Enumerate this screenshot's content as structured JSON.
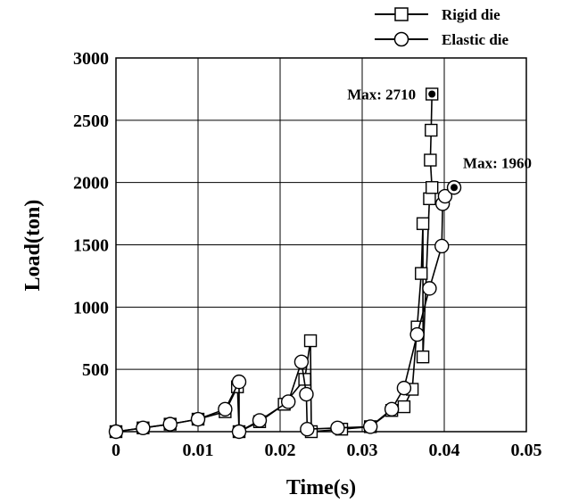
{
  "chart_data": {
    "type": "line",
    "xlabel": "Time(s)",
    "ylabel": "Load(ton)",
    "xlim": [
      0,
      0.05
    ],
    "ylim": [
      0,
      3000
    ],
    "x_ticks": [
      "0",
      "0.01",
      "0.02",
      "0.03",
      "0.04",
      "0.05"
    ],
    "y_ticks": [
      "500",
      "1000",
      "1500",
      "2000",
      "2500",
      "3000"
    ],
    "grid": true,
    "legend_position": "top-right",
    "series": [
      {
        "name": "Rigid die",
        "marker": "square",
        "points": [
          [
            0,
            0
          ],
          [
            0.0033,
            30
          ],
          [
            0.0066,
            60
          ],
          [
            0.01,
            100
          ],
          [
            0.0133,
            160
          ],
          [
            0.0148,
            360
          ],
          [
            0.015,
            0
          ],
          [
            0.0175,
            80
          ],
          [
            0.0205,
            220
          ],
          [
            0.023,
            420
          ],
          [
            0.0237,
            730
          ],
          [
            0.0238,
            0
          ],
          [
            0.0275,
            20
          ],
          [
            0.031,
            40
          ],
          [
            0.0336,
            170
          ],
          [
            0.0351,
            200
          ],
          [
            0.0361,
            340
          ],
          [
            0.0367,
            840
          ],
          [
            0.0372,
            1270
          ],
          [
            0.0374,
            1670
          ],
          [
            0.0374,
            600
          ],
          [
            0.0382,
            1870
          ],
          [
            0.0385,
            1960
          ],
          [
            0.0383,
            2180
          ],
          [
            0.0384,
            2420
          ],
          [
            0.0385,
            2710
          ]
        ]
      },
      {
        "name": "Elastic die",
        "marker": "circle",
        "points": [
          [
            0,
            0
          ],
          [
            0.0033,
            30
          ],
          [
            0.0066,
            60
          ],
          [
            0.01,
            100
          ],
          [
            0.0133,
            180
          ],
          [
            0.015,
            400
          ],
          [
            0.015,
            0
          ],
          [
            0.0175,
            90
          ],
          [
            0.021,
            240
          ],
          [
            0.0226,
            560
          ],
          [
            0.0232,
            300
          ],
          [
            0.0233,
            20
          ],
          [
            0.027,
            30
          ],
          [
            0.031,
            40
          ],
          [
            0.0336,
            180
          ],
          [
            0.0351,
            350
          ],
          [
            0.0367,
            780
          ],
          [
            0.0382,
            1150
          ],
          [
            0.0397,
            1490
          ],
          [
            0.0398,
            1830
          ],
          [
            0.0401,
            1890
          ],
          [
            0.0412,
            1960
          ]
        ]
      }
    ],
    "annotations": [
      {
        "text": "Max: 2710",
        "x": 0.0385,
        "y": 2710
      },
      {
        "text": "Max: 1960",
        "x": 0.0412,
        "y": 1960
      }
    ]
  }
}
